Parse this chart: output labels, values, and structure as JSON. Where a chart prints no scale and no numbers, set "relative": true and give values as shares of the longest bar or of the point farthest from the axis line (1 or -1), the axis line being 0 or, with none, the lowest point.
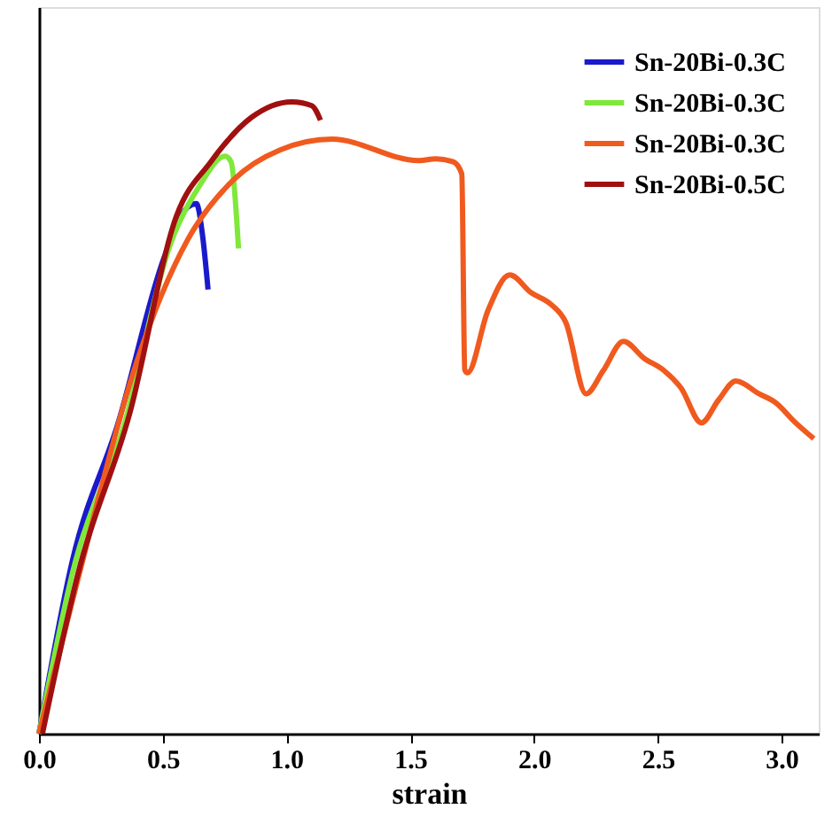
{
  "chart_data": {
    "type": "line",
    "relative": true,
    "xlabel": "strain",
    "xlim": [
      0,
      3.15
    ],
    "xticks": [
      {
        "value": 0,
        "label": "0.0"
      },
      0.5,
      {
        "value": 1,
        "label": "1.0"
      },
      1.5,
      {
        "value": 2,
        "label": "2.0"
      },
      2.5,
      {
        "value": 3,
        "label": "3.0"
      }
    ],
    "grid": false,
    "legend": "top right",
    "marker": "none",
    "line_style": "solid",
    "series": [
      {
        "name": "Sn-20Bi-0.3C",
        "color": "#1a1acc",
        "x": [
          0,
          0.135,
          0.32,
          0.506,
          0.6,
          0.636,
          0.66,
          0.683
        ],
        "values": [
          0,
          0.274,
          0.492,
          0.754,
          0.833,
          0.839,
          0.791,
          0.703
        ]
      },
      {
        "name": "Sn-20Bi-0.3C",
        "color": "#7fe83a",
        "x": [
          0,
          0.135,
          0.345,
          0.53,
          0.648,
          0.752,
          0.776,
          0.806
        ],
        "values": [
          0,
          0.254,
          0.49,
          0.774,
          0.867,
          0.914,
          0.905,
          0.768
        ]
      },
      {
        "name": "Sn-20Bi-0.3C",
        "color": "#f05a1e",
        "x": [
          0,
          0.158,
          0.392,
          0.601,
          0.787,
          0.974,
          1.184,
          1.534,
          1.603,
          1.674,
          1.708,
          1.72,
          1.731,
          1.813,
          1.902,
          1.988,
          2.07,
          2.128,
          2.21,
          2.28,
          2.361,
          2.445,
          2.524,
          2.594,
          2.676,
          2.745,
          2.815,
          2.909,
          2.979,
          3.049,
          3.13
        ],
        "values": [
          0,
          0.246,
          0.585,
          0.782,
          0.877,
          0.924,
          0.941,
          0.907,
          0.91,
          0.905,
          0.886,
          0.576,
          0.571,
          0.669,
          0.726,
          0.698,
          0.679,
          0.651,
          0.538,
          0.575,
          0.621,
          0.594,
          0.575,
          0.547,
          0.492,
          0.528,
          0.558,
          0.538,
          0.523,
          0.495,
          0.467
        ]
      },
      {
        "name": "Sn-20Bi-0.5C",
        "color": "#a01010",
        "x": [
          0.014,
          0.158,
          0.368,
          0.555,
          0.694,
          0.857,
          1.021,
          1.102,
          1.137
        ],
        "values": [
          0,
          0.254,
          0.509,
          0.819,
          0.905,
          0.975,
          1.0,
          0.994,
          0.971
        ]
      }
    ]
  }
}
